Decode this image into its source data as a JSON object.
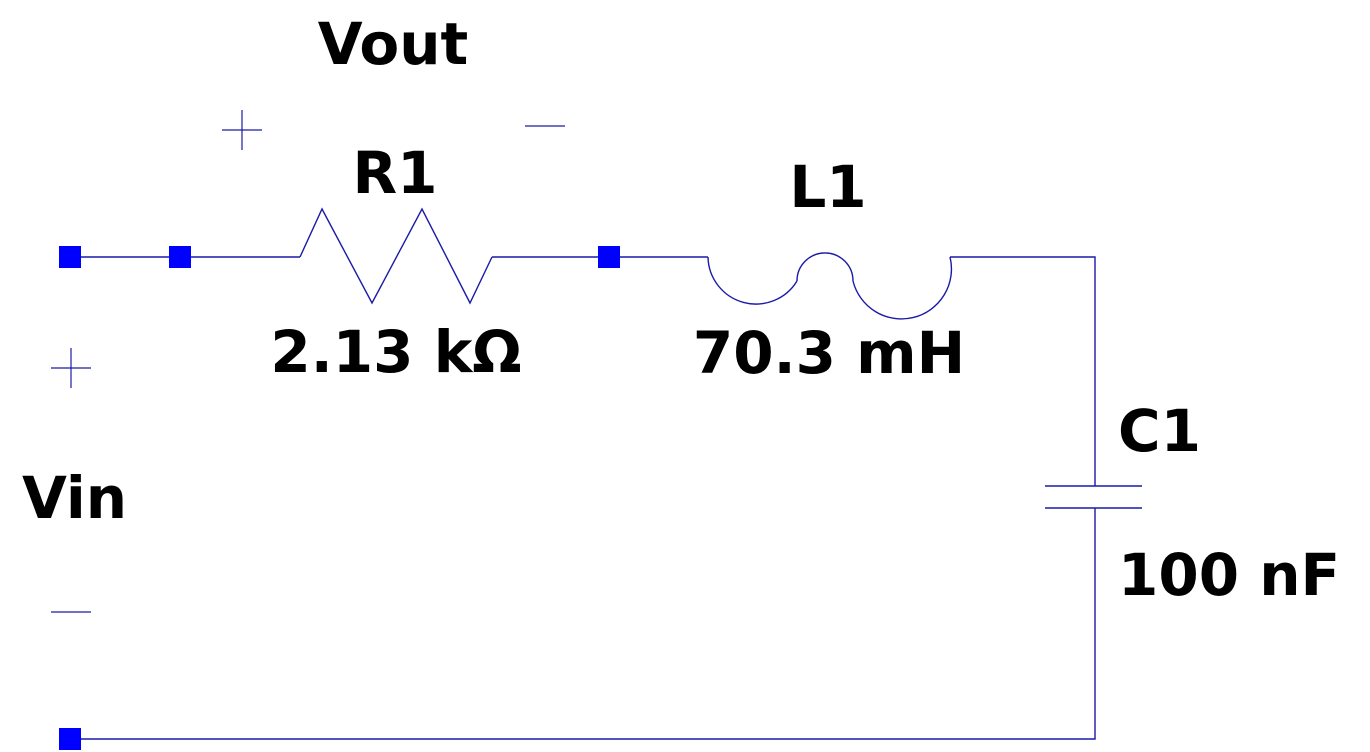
{
  "labels": {
    "vout": "Vout",
    "vin": "Vin"
  },
  "components": {
    "resistor": {
      "ref": "R1",
      "value": "2.13 kΩ"
    },
    "inductor": {
      "ref": "L1",
      "value": "70.3 mH"
    },
    "capacitor": {
      "ref": "C1",
      "value": "100 nF"
    }
  },
  "colors": {
    "wire": "#1a1aa8",
    "node": "#0000ff",
    "text": "#000000",
    "background": "#ffffff"
  }
}
